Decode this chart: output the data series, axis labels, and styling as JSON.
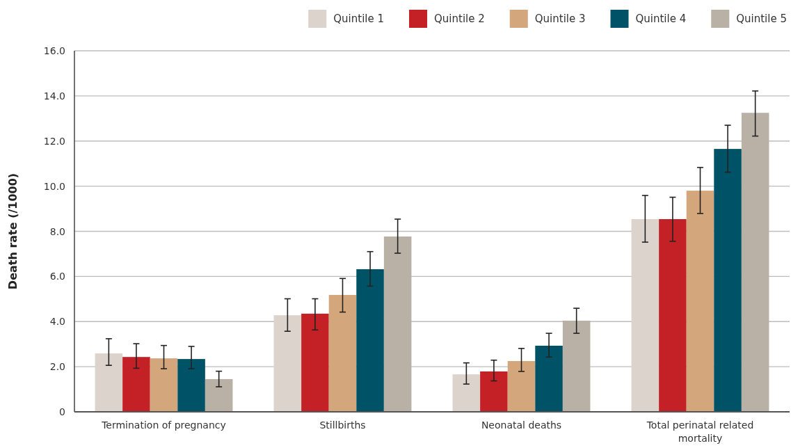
{
  "chart_data": {
    "type": "bar",
    "categories": [
      "Termination of pregnancy",
      "Stillbirths",
      "Neonatal deaths",
      "Total perinatal related mortality"
    ],
    "ylabel": "Death rate (/1000)",
    "series": [
      {
        "name": "Quintile 1",
        "color": "#dbd3cc",
        "values": [
          2.59,
          4.28,
          1.66,
          8.54
        ],
        "errors": [
          [
            2.06,
            3.24
          ],
          [
            3.57,
            5.01
          ],
          [
            1.23,
            2.17
          ],
          [
            7.52,
            9.59
          ]
        ]
      },
      {
        "name": "Quintile 2",
        "color": "#c42127",
        "values": [
          2.43,
          4.35,
          1.79,
          8.54
        ],
        "errors": [
          [
            1.93,
            3.02
          ],
          [
            3.63,
            5.01
          ],
          [
            1.37,
            2.29
          ],
          [
            7.56,
            9.51
          ]
        ]
      },
      {
        "name": "Quintile 3",
        "color": "#d4a67b",
        "values": [
          2.37,
          5.18,
          2.25,
          9.8
        ],
        "errors": [
          [
            1.91,
            2.94
          ],
          [
            4.42,
            5.91
          ],
          [
            1.79,
            2.81
          ],
          [
            8.79,
            10.83
          ]
        ]
      },
      {
        "name": "Quintile 4",
        "color": "#005366",
        "values": [
          2.34,
          6.32,
          2.93,
          11.65
        ],
        "errors": [
          [
            1.91,
            2.9
          ],
          [
            5.57,
            7.1
          ],
          [
            2.43,
            3.48
          ],
          [
            10.62,
            12.7
          ]
        ]
      },
      {
        "name": "Quintile 5",
        "color": "#b9b0a6",
        "values": [
          1.45,
          7.77,
          4.04,
          13.25
        ],
        "errors": [
          [
            1.11,
            1.8
          ],
          [
            7.03,
            8.54
          ],
          [
            3.48,
            4.59
          ],
          [
            12.22,
            14.22
          ]
        ]
      }
    ],
    "ylim": [
      0,
      16
    ],
    "yticks": [
      0,
      {
        "value": 2,
        "label": "2.0"
      },
      {
        "value": 4,
        "label": "4.0"
      },
      {
        "value": 6,
        "label": "6.0"
      },
      {
        "value": 8,
        "label": "8.0"
      },
      {
        "value": 10,
        "label": "10.0"
      },
      {
        "value": 12,
        "label": "12.0"
      },
      {
        "value": 14,
        "label": "14.0"
      },
      {
        "value": 16,
        "label": "16.0"
      }
    ],
    "grid": "y",
    "legend": "top right"
  }
}
